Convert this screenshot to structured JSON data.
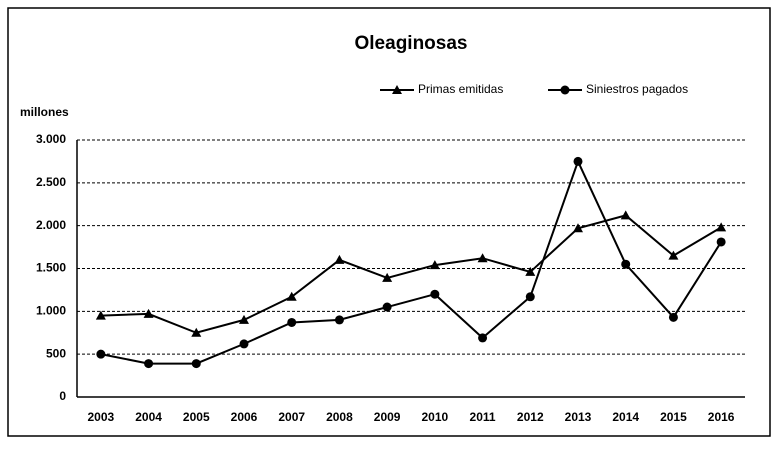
{
  "chart_data": {
    "type": "line",
    "title": "Oleaginosas",
    "y_label": "millones",
    "categories": [
      "2003",
      "2004",
      "2005",
      "2006",
      "2007",
      "2008",
      "2009",
      "2010",
      "2011",
      "2012",
      "2013",
      "2014",
      "2015",
      "2016"
    ],
    "series": [
      {
        "name": "Primas emitidas",
        "color": "#000000",
        "marker": "triangle",
        "values": [
          950,
          970,
          750,
          900,
          1170,
          1600,
          1390,
          1540,
          1620,
          1460,
          1970,
          2120,
          1650,
          1980
        ]
      },
      {
        "name": "Siniestros pagados",
        "color": "#000000",
        "marker": "circle",
        "values": [
          500,
          390,
          390,
          620,
          870,
          900,
          1050,
          1200,
          690,
          1170,
          2750,
          1550,
          930,
          1810
        ]
      }
    ],
    "ylim": [
      0,
      3000
    ],
    "yticks": [
      0,
      500,
      {
        "value": 1000,
        "label": "1.000"
      },
      {
        "value": 1500,
        "label": "1.500"
      },
      {
        "value": 2000,
        "label": "2.000"
      },
      {
        "value": 2500,
        "label": "2.500"
      },
      {
        "value": 3000,
        "label": "3.000"
      }
    ],
    "grid": true,
    "legend": "top-right"
  }
}
